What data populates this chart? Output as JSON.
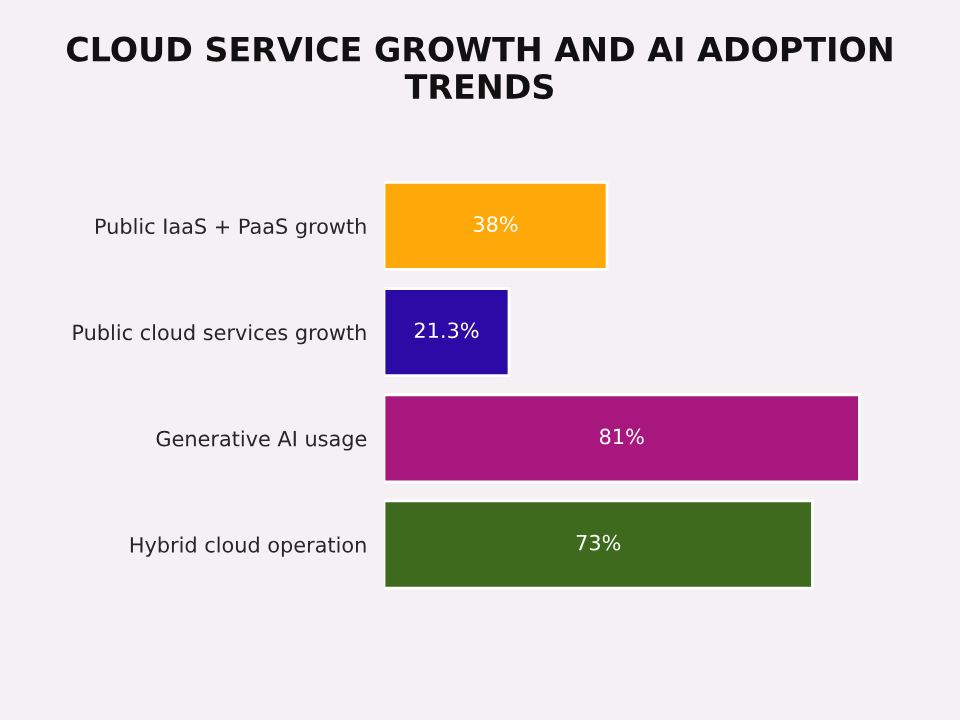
{
  "chart_data": {
    "type": "bar",
    "orientation": "horizontal",
    "title": "CLOUD SERVICE GROWTH AND AI ADOPTION TRENDS",
    "categories": [
      "Public IaaS + PaaS growth",
      "Public cloud services growth",
      "Generative AI usage",
      "Hybrid cloud operation"
    ],
    "values": [
      38,
      21.3,
      81,
      73
    ],
    "colors": [
      "#ffa80a",
      "#2b0aa6",
      "#a8177e",
      "#3e6a1d"
    ],
    "value_labels": [
      "38%",
      "21.3%",
      "81%",
      "73%"
    ]
  }
}
